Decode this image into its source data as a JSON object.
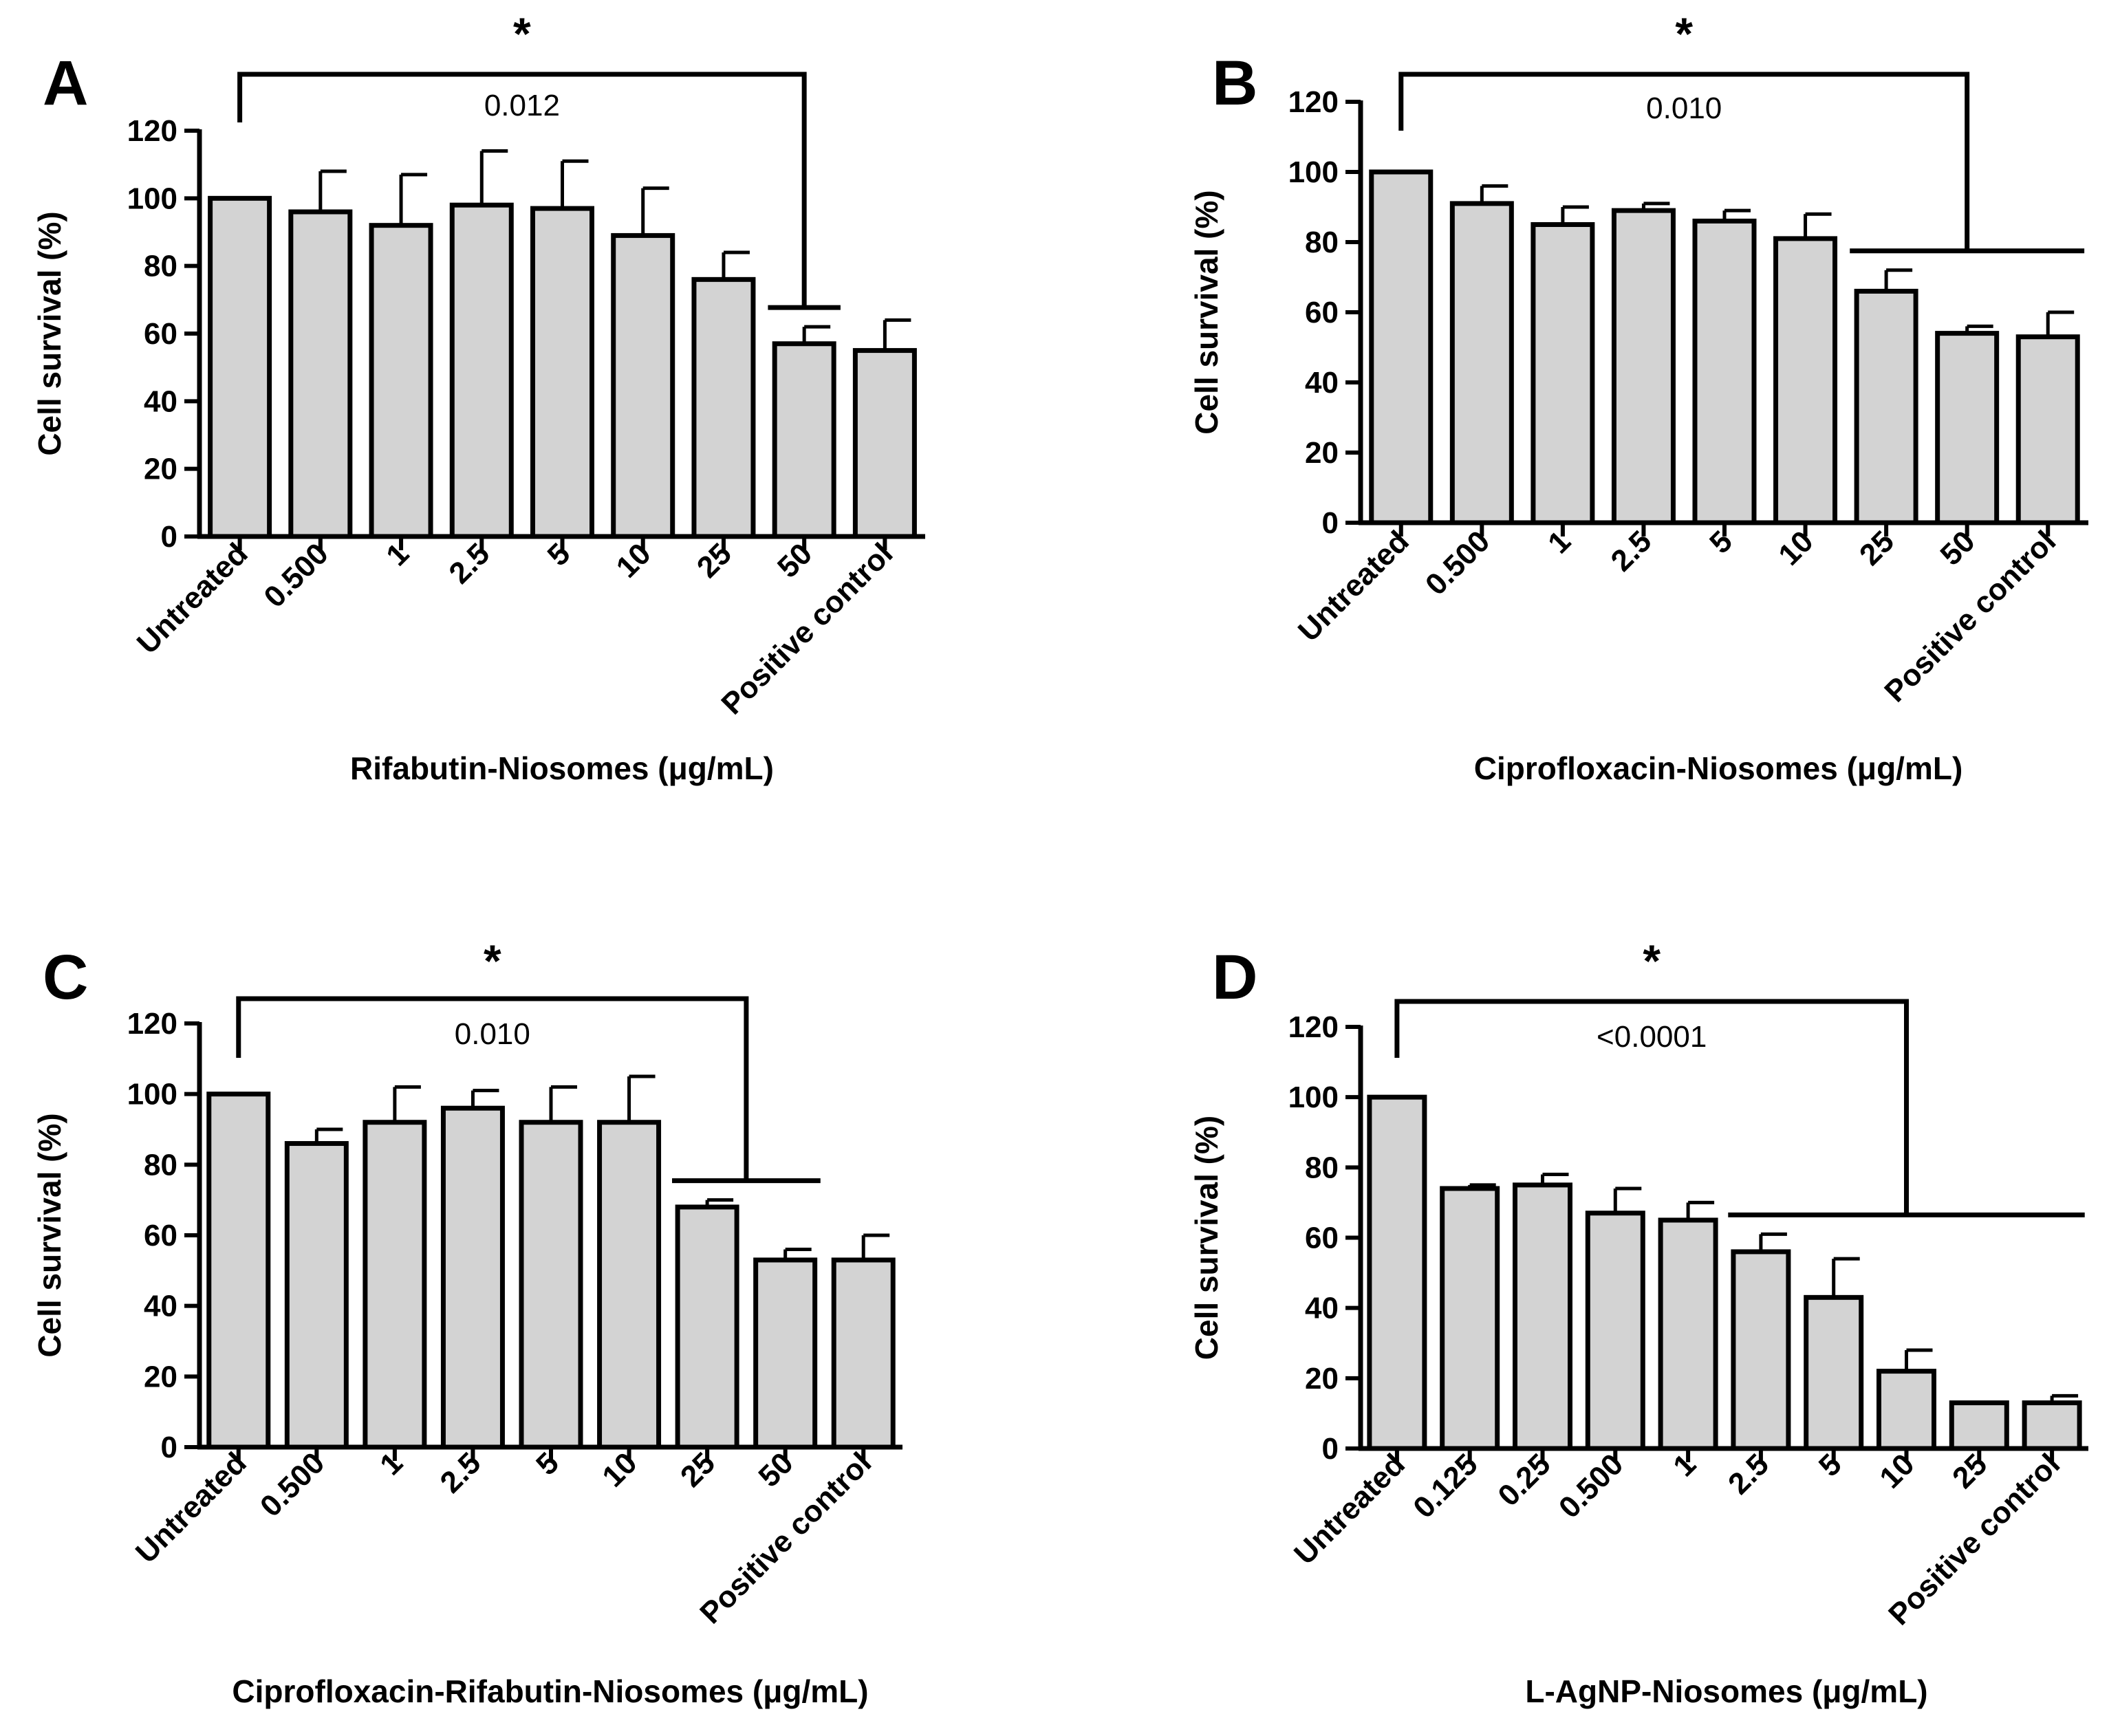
{
  "chart_data": [
    {
      "panel": "A",
      "type": "bar",
      "categories": [
        "Untreated",
        "0.500",
        "1",
        "2.5",
        "5",
        "10",
        "25",
        "50",
        "Positive control"
      ],
      "values": [
        100,
        96,
        92,
        98,
        97,
        89,
        76,
        57,
        55
      ],
      "errors": [
        0,
        12,
        15,
        16,
        14,
        14,
        8,
        5,
        9
      ],
      "ylabel": "Cell survival (%)",
      "xlabel": "Rifabutin-Niosomes (μg/mL)",
      "ylim": [
        0,
        120
      ],
      "yticks": [
        0,
        20,
        40,
        60,
        80,
        100,
        120
      ],
      "significance": {
        "symbol": "*",
        "p_value": "0.012",
        "from_index": 0,
        "to_index": 7,
        "to_end_index": 7
      },
      "colors": {
        "bar": "#d3d3d3",
        "stroke": "#000000"
      }
    },
    {
      "panel": "B",
      "type": "bar",
      "categories": [
        "Untreated",
        "0.500",
        "1",
        "2.5",
        "5",
        "10",
        "25",
        "50",
        "Positive control"
      ],
      "values": [
        100,
        91,
        85,
        89,
        86,
        81,
        66,
        54,
        53
      ],
      "errors": [
        0,
        5,
        5,
        2,
        3,
        7,
        6,
        2,
        7
      ],
      "ylabel": "Cell survival (%)",
      "xlabel": "Ciprofloxacin-Niosomes (μg/mL)",
      "ylim": [
        0,
        120
      ],
      "yticks": [
        0,
        20,
        40,
        60,
        80,
        100,
        120
      ],
      "significance": {
        "symbol": "*",
        "p_value": "0.010",
        "from_index": 0,
        "to_index": 6,
        "to_end_index": 8
      },
      "colors": {
        "bar": "#d3d3d3",
        "stroke": "#000000"
      }
    },
    {
      "panel": "C",
      "type": "bar",
      "categories": [
        "Untreated",
        "0.500",
        "1",
        "2.5",
        "5",
        "10",
        "25",
        "50",
        "Positive control"
      ],
      "values": [
        100,
        86,
        92,
        96,
        92,
        92,
        68,
        53,
        53
      ],
      "errors": [
        0,
        4,
        10,
        5,
        10,
        13,
        2,
        3,
        7
      ],
      "ylabel": "Cell survival (%)",
      "xlabel": "Ciprofloxacin-Rifabutin-Niosomes (μg/mL)",
      "ylim": [
        0,
        120
      ],
      "yticks": [
        0,
        20,
        40,
        60,
        80,
        100,
        120
      ],
      "significance": {
        "symbol": "*",
        "p_value": "0.010",
        "from_index": 0,
        "to_index": 6,
        "to_end_index": 7
      },
      "colors": {
        "bar": "#d3d3d3",
        "stroke": "#000000"
      }
    },
    {
      "panel": "D",
      "type": "bar",
      "categories": [
        "Untreated",
        "0.125",
        "0.25",
        "0.500",
        "1",
        "2.5",
        "5",
        "10",
        "25",
        "Positive control"
      ],
      "values": [
        100,
        74,
        75,
        67,
        65,
        56,
        43,
        22,
        13,
        13
      ],
      "errors": [
        0,
        1,
        3,
        7,
        5,
        5,
        11,
        6,
        0,
        2
      ],
      "ylabel": "Cell survival (%)",
      "xlabel": "L-AgNP-Niosomes (μg/mL)",
      "ylim": [
        0,
        120
      ],
      "yticks": [
        0,
        20,
        40,
        60,
        80,
        100,
        120
      ],
      "significance": {
        "symbol": "*",
        "p_value": "<0.0001",
        "from_index": 0,
        "to_index": 5,
        "to_end_index": 9
      },
      "colors": {
        "bar": "#d3d3d3",
        "stroke": "#000000"
      }
    }
  ]
}
